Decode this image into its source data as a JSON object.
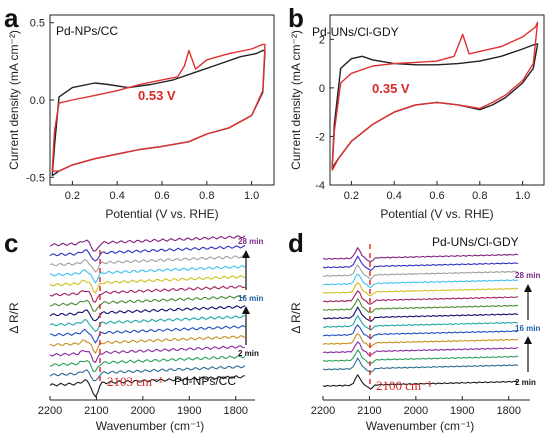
{
  "colors": {
    "black_curve": "#222222",
    "red_curve": "#e03030",
    "annotation": "#d62828",
    "dashed_line": "#e03030",
    "time_28": "#7a2a8a",
    "time_16": "#1f5fa8",
    "time_2": "#111111"
  },
  "chart_data": [
    {
      "panel": "a",
      "type": "line",
      "title": "Pd-NPs/CC",
      "xlabel": "Potential (V vs. RHE)",
      "ylabel": "Current density (mA cm⁻²)",
      "xlim": [
        0.1,
        1.1
      ],
      "ylim": [
        -0.55,
        0.55
      ],
      "xticks": [
        "0.2",
        "0.4",
        "0.6",
        "0.8",
        "1.0"
      ],
      "yticks": [
        "0.5",
        "0.0",
        "-0.5"
      ],
      "annotation": "0.53 V",
      "series": [
        {
          "color": "black",
          "x": [
            0.11,
            0.12,
            0.14,
            0.2,
            0.3,
            0.36,
            0.45,
            0.55,
            0.65,
            0.75,
            0.85,
            0.95,
            1.02,
            1.05,
            1.06,
            1.05,
            1.0,
            0.9,
            0.8,
            0.72,
            0.6,
            0.5,
            0.4,
            0.3,
            0.2,
            0.14,
            0.11,
            0.11
          ],
          "y": [
            -0.49,
            -0.3,
            0.02,
            0.08,
            0.11,
            0.1,
            0.08,
            0.1,
            0.13,
            0.18,
            0.23,
            0.28,
            0.3,
            0.32,
            0.32,
            0.05,
            -0.1,
            -0.18,
            -0.22,
            -0.27,
            -0.3,
            -0.32,
            -0.35,
            -0.38,
            -0.42,
            -0.46,
            -0.49,
            -0.49
          ]
        },
        {
          "color": "red",
          "x": [
            0.11,
            0.12,
            0.14,
            0.2,
            0.3,
            0.4,
            0.5,
            0.6,
            0.67,
            0.7,
            0.72,
            0.75,
            0.8,
            0.9,
            1.0,
            1.05,
            1.06,
            1.05,
            1.0,
            0.9,
            0.8,
            0.72,
            0.6,
            0.5,
            0.4,
            0.3,
            0.2,
            0.14,
            0.11
          ],
          "y": [
            -0.46,
            -0.2,
            -0.02,
            0.0,
            0.03,
            0.06,
            0.1,
            0.13,
            0.15,
            0.22,
            0.32,
            0.2,
            0.26,
            0.3,
            0.33,
            0.36,
            0.36,
            0.06,
            -0.1,
            -0.18,
            -0.22,
            -0.27,
            -0.3,
            -0.32,
            -0.35,
            -0.38,
            -0.42,
            -0.46,
            -0.46
          ]
        }
      ]
    },
    {
      "panel": "b",
      "type": "line",
      "title": "Pd-UNs/Cl-GDY",
      "xlabel": "Potential (V vs. RHE)",
      "ylabel": "Current density (mA cm⁻²)",
      "xlim": [
        0.1,
        1.1
      ],
      "ylim": [
        -4,
        3
      ],
      "xticks": [
        "0.2",
        "0.4",
        "0.6",
        "0.8",
        "1.0"
      ],
      "yticks": [
        "2",
        "0",
        "-2",
        "-4"
      ],
      "annotation": "0.35 V",
      "series": [
        {
          "color": "black",
          "x": [
            0.11,
            0.12,
            0.15,
            0.2,
            0.25,
            0.3,
            0.4,
            0.5,
            0.6,
            0.7,
            0.8,
            0.9,
            1.0,
            1.06,
            1.07,
            1.05,
            1.0,
            0.92,
            0.86,
            0.8,
            0.7,
            0.6,
            0.5,
            0.4,
            0.3,
            0.2,
            0.14,
            0.11
          ],
          "y": [
            -3.3,
            -1.5,
            0.8,
            1.2,
            1.3,
            1.15,
            1.0,
            0.95,
            0.95,
            1.0,
            1.1,
            1.3,
            1.6,
            1.8,
            1.8,
            0.8,
            0.2,
            -0.4,
            -0.7,
            -0.9,
            -0.7,
            -0.6,
            -0.7,
            -1.0,
            -1.5,
            -2.2,
            -2.9,
            -3.3
          ]
        },
        {
          "color": "red",
          "x": [
            0.11,
            0.12,
            0.15,
            0.2,
            0.3,
            0.4,
            0.5,
            0.6,
            0.68,
            0.72,
            0.75,
            0.8,
            0.9,
            1.0,
            1.06,
            1.07,
            1.05,
            1.0,
            0.92,
            0.86,
            0.8,
            0.7,
            0.6,
            0.5,
            0.4,
            0.3,
            0.2,
            0.14,
            0.11
          ],
          "y": [
            -3.4,
            -1.8,
            0.2,
            0.6,
            0.9,
            1.0,
            1.05,
            1.1,
            1.3,
            2.2,
            1.4,
            1.5,
            1.7,
            2.1,
            2.5,
            2.7,
            1.0,
            0.3,
            -0.3,
            -0.6,
            -0.85,
            -0.7,
            -0.6,
            -0.7,
            -1.0,
            -1.5,
            -2.2,
            -2.9,
            -3.4
          ]
        }
      ]
    },
    {
      "panel": "c",
      "type": "line",
      "title": "Pd-NPs/CC",
      "xlabel": "Wavenumber (cm⁻¹)",
      "ylabel": "Δ R/R",
      "xlim": [
        2200,
        1780
      ],
      "xticks": [
        "2200",
        "2100",
        "2000",
        "1900",
        "1800"
      ],
      "annotation": "2103 cm⁻¹",
      "marker_wavenumber": 2103,
      "time_labels": [
        "28 min",
        "16 min",
        "2 min"
      ],
      "series_count": 15,
      "series_colors": [
        "#1a1a1a",
        "#2c6e8f",
        "#2aa05a",
        "#8a2aa0",
        "#c89020",
        "#2050c0",
        "#20a8a8",
        "#101070",
        "#4a8a30",
        "#a02060",
        "#d0c020",
        "#40c0f0",
        "#a0a0a0",
        "#3030c0",
        "#802080"
      ]
    },
    {
      "panel": "d",
      "type": "line",
      "title": "Pd-UNs/Cl-GDY",
      "xlabel": "Wavenumber (cm⁻¹)",
      "ylabel": "Δ R/R",
      "xlim": [
        2200,
        1780
      ],
      "xticks": [
        "2200",
        "2100",
        "2000",
        "1900",
        "1800"
      ],
      "annotation": "2100 cm⁻¹",
      "marker_wavenumber": 2100,
      "time_labels": [
        "28 min",
        "16 min",
        "2 min"
      ],
      "series_count": 15,
      "series_colors": [
        "#1a1a1a",
        "#2c6e8f",
        "#2aa05a",
        "#8a2aa0",
        "#c89020",
        "#2050c0",
        "#20a8a8",
        "#101070",
        "#4a8a30",
        "#a02060",
        "#d0c020",
        "#40c0f0",
        "#a0a0a0",
        "#3030c0",
        "#802080"
      ]
    }
  ]
}
